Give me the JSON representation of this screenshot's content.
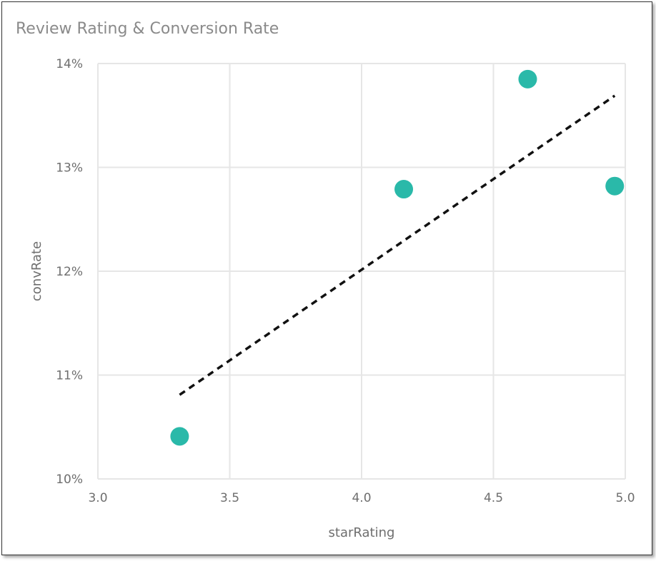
{
  "chart_data": {
    "type": "scatter",
    "title": "Review Rating & Conversion Rate",
    "xlabel": "starRating",
    "ylabel": "convRate",
    "xlim": [
      3.0,
      5.0
    ],
    "ylim": [
      10,
      14
    ],
    "x_ticks": [
      "3.0",
      "3.5",
      "4.0",
      "4.5",
      "5.0"
    ],
    "y_ticks": [
      "10%",
      "11%",
      "12%",
      "13%",
      "14%"
    ],
    "grid": true,
    "series": [
      {
        "points": [
          {
            "x": 3.31,
            "y": 10.41
          },
          {
            "x": 4.16,
            "y": 12.79
          },
          {
            "x": 4.63,
            "y": 13.85
          },
          {
            "x": 4.96,
            "y": 12.82
          }
        ]
      }
    ],
    "trendline": {
      "x": [
        3.31,
        4.96
      ],
      "y": [
        10.81,
        13.69
      ]
    },
    "colors": {
      "points": "#2ab9a9",
      "trendline": "#111111",
      "grid": "#e6e6e6"
    }
  }
}
